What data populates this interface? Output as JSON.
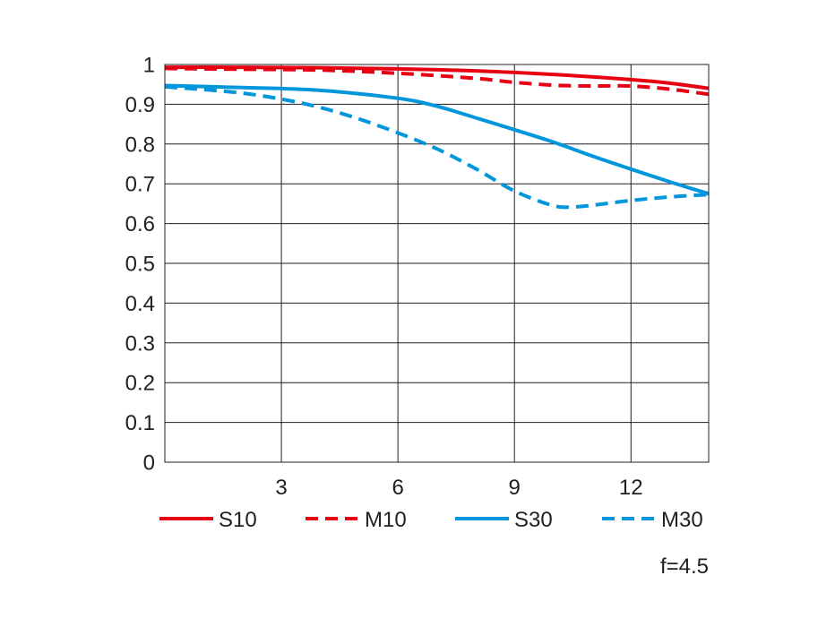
{
  "chart_data": {
    "type": "line",
    "title": "",
    "xlabel": "",
    "ylabel": "",
    "xlim": [
      0,
      14
    ],
    "ylim": [
      0,
      1
    ],
    "x_ticks": [
      "3",
      "6",
      "9",
      "12"
    ],
    "x_tick_values": [
      3,
      6,
      9,
      12
    ],
    "y_ticks": [
      "0",
      "0.1",
      "0.2",
      "0.3",
      "0.4",
      "0.5",
      "0.6",
      "0.7",
      "0.8",
      "0.9",
      "1"
    ],
    "y_tick_values": [
      0,
      0.1,
      0.2,
      0.3,
      0.4,
      0.5,
      0.6,
      0.7,
      0.8,
      0.9,
      1
    ],
    "grid": true,
    "legend_position": "bottom",
    "note": "f=4.5",
    "series": [
      {
        "name": "S10",
        "color": "#e60012",
        "dash": "solid",
        "x": [
          0,
          2,
          4,
          6,
          8,
          10,
          12,
          13,
          14
        ],
        "y": [
          0.993,
          0.993,
          0.992,
          0.989,
          0.984,
          0.975,
          0.962,
          0.953,
          0.94
        ]
      },
      {
        "name": "M10",
        "color": "#e60012",
        "dash": "dashed",
        "x": [
          0,
          2,
          4,
          6,
          8,
          9,
          10,
          11,
          12,
          13,
          14
        ],
        "y": [
          0.99,
          0.988,
          0.986,
          0.978,
          0.965,
          0.955,
          0.948,
          0.946,
          0.946,
          0.938,
          0.925
        ]
      },
      {
        "name": "S30",
        "color": "#0096dc",
        "dash": "solid",
        "x": [
          0,
          2,
          4,
          6,
          7,
          8,
          9,
          10,
          11,
          12,
          13,
          14
        ],
        "y": [
          0.947,
          0.942,
          0.935,
          0.915,
          0.895,
          0.866,
          0.836,
          0.805,
          0.77,
          0.737,
          0.705,
          0.675
        ]
      },
      {
        "name": "M30",
        "color": "#0096dc",
        "dash": "dashed",
        "x": [
          0,
          1,
          2,
          3,
          4,
          5,
          6,
          7,
          8,
          9,
          10,
          10.5,
          11,
          12,
          13,
          14
        ],
        "y": [
          0.944,
          0.937,
          0.928,
          0.913,
          0.892,
          0.863,
          0.828,
          0.788,
          0.738,
          0.682,
          0.645,
          0.642,
          0.646,
          0.658,
          0.667,
          0.673
        ]
      }
    ]
  }
}
